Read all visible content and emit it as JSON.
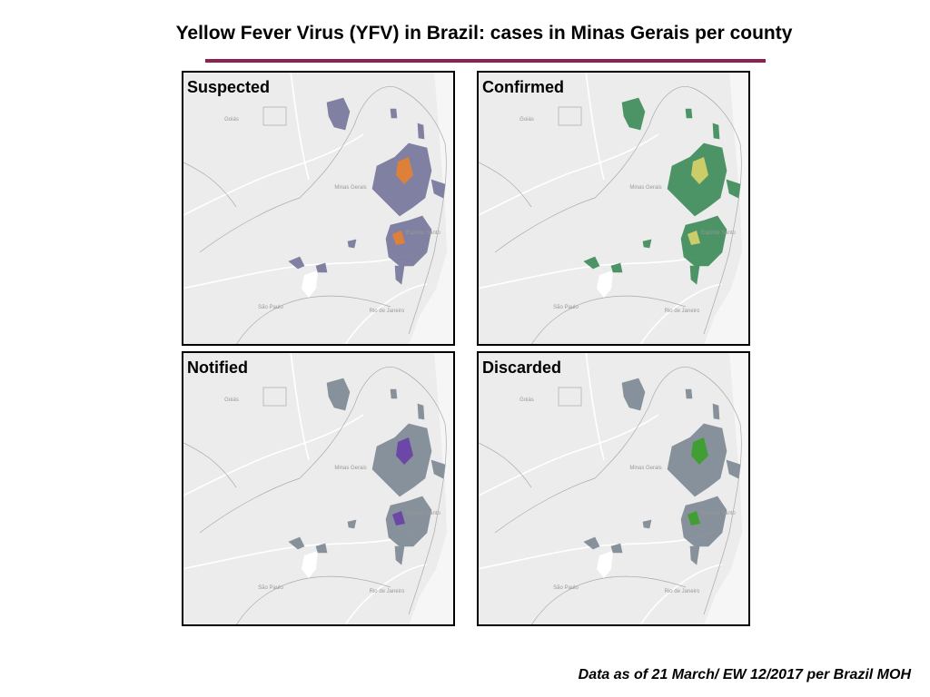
{
  "title": "Yellow Fever Virus (YFV) in Brazil: cases in Minas Gerais per county",
  "panels": [
    {
      "label": "Suspected",
      "color": "#75759a",
      "highlight": "#e8802e"
    },
    {
      "label": "Confirmed",
      "color": "#3b8a57",
      "highlight": "#d9d46a"
    },
    {
      "label": "Notified",
      "color": "#7d8893",
      "highlight": "#6a3fa8"
    },
    {
      "label": "Discarded",
      "color": "#7d8893",
      "highlight": "#3aa02a"
    }
  ],
  "map_labels": [
    "Goiás",
    "Minas Gerais",
    "Espírito Santo",
    "São Paulo",
    "Rio de Janeiro"
  ],
  "footnote": "Data as of 21 March/ EW 12/2017 per Brazil MOH"
}
